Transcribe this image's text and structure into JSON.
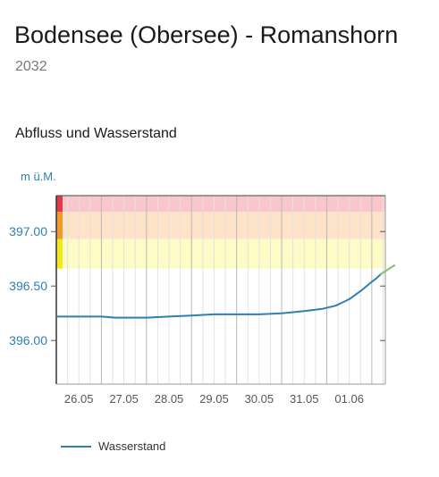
{
  "header": {
    "title": "Bodensee (Obersee) - Romanshorn",
    "station_id": "2032"
  },
  "section": {
    "title": "Abfluss und Wasserstand"
  },
  "colors": {
    "series": "#2f7fb0",
    "axis_text": "#2f7fb0",
    "danger_band": "#f9c6cb",
    "warning_band": "#fde3c7",
    "caution_band": "#fdfcc6"
  },
  "chart_data": {
    "type": "line",
    "ylabel": "m ü.M.",
    "y_ticks": [
      "396.00",
      "396.50",
      "397.00"
    ],
    "x_ticks": [
      "26.05",
      "27.05",
      "28.05",
      "29.05",
      "30.05",
      "31.05",
      "01.06"
    ],
    "ylim": [
      395.6,
      397.33
    ],
    "xlim": [
      0,
      7.3
    ],
    "grid": true,
    "legend_position": "bottom-left",
    "danger_levels": [
      {
        "level": "danger",
        "from": 397.18,
        "to": 397.33
      },
      {
        "level": "warning",
        "from": 396.93,
        "to": 397.18
      },
      {
        "level": "caution",
        "from": 396.66,
        "to": 396.93
      }
    ],
    "series": [
      {
        "name": "Wasserstand",
        "x": [
          0,
          0.5,
          1.0,
          1.3,
          1.6,
          2.0,
          2.5,
          3.0,
          3.5,
          4.0,
          4.25,
          4.5,
          5.0,
          5.5,
          5.9,
          6.2,
          6.5,
          6.8,
          7.0,
          7.1,
          7.2
        ],
        "y": [
          396.22,
          396.22,
          396.22,
          396.21,
          396.21,
          396.21,
          396.22,
          396.23,
          396.24,
          396.24,
          396.24,
          396.24,
          396.25,
          396.27,
          396.29,
          396.32,
          396.38,
          396.47,
          396.54,
          396.57,
          396.61
        ]
      },
      {
        "name": "",
        "x": [
          7.2,
          7.5
        ],
        "y": [
          396.61,
          396.69
        ]
      }
    ]
  },
  "legend": {
    "label": "Wasserstand"
  }
}
